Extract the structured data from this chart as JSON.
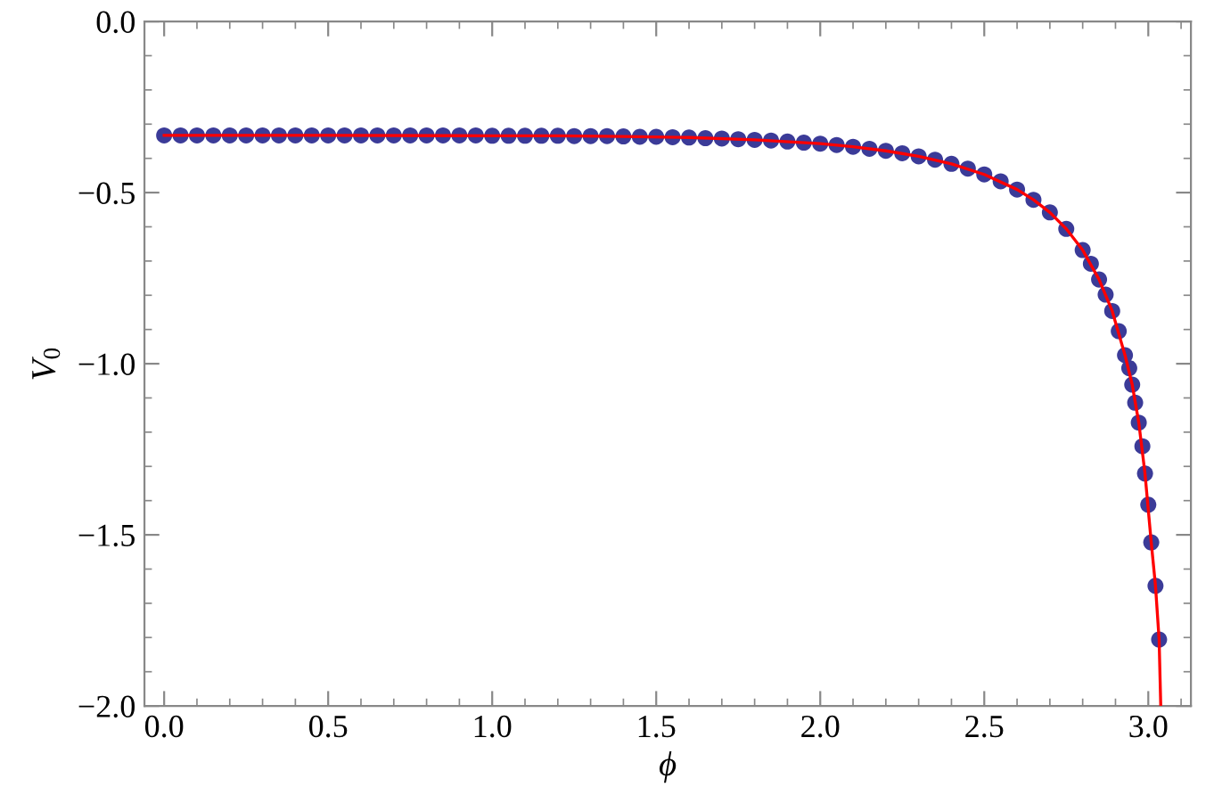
{
  "chart_data": {
    "type": "scatter",
    "xlabel": "ϕ",
    "ylabel": "V$_{0}$",
    "xlim": [
      -0.06,
      3.13
    ],
    "ylim": [
      -2.0,
      0.0
    ],
    "xticks": [
      {
        "value": 0,
        "label": "0.0"
      },
      0.5,
      {
        "value": 1,
        "label": "1.0"
      },
      1.5,
      {
        "value": 2,
        "label": "2.0"
      },
      2.5,
      {
        "value": 3,
        "label": "3.0"
      }
    ],
    "yticks": [
      {
        "value": -2,
        "label": "−2.0"
      },
      {
        "value": -1.5,
        "label": "−1.5"
      },
      {
        "value": -1,
        "label": "−1.0"
      },
      {
        "value": -0.5,
        "label": "−0.5"
      },
      {
        "value": 0,
        "label": "0.0"
      }
    ],
    "grid": false,
    "marker": "circle",
    "series": [
      {
        "color": "#3b3b98",
        "x": [
          0,
          0.05,
          0.1,
          0.15,
          0.2,
          0.25,
          0.3,
          0.35,
          0.4,
          0.45,
          0.5,
          0.55,
          0.6,
          0.65,
          0.7,
          0.75,
          0.8,
          0.85,
          0.9,
          0.95,
          1.0,
          1.05,
          1.1,
          1.15,
          1.2,
          1.25,
          1.3,
          1.35,
          1.4,
          1.45,
          1.5,
          1.55,
          1.6,
          1.65,
          1.7,
          1.75,
          1.8,
          1.85,
          1.9,
          1.95,
          2.0,
          2.05,
          2.1,
          2.15,
          2.2,
          2.25,
          2.3,
          2.35,
          2.4,
          2.45,
          2.5,
          2.55,
          2.6,
          2.65,
          2.7,
          2.75,
          2.8,
          2.825,
          2.85,
          2.87,
          2.89,
          2.91,
          2.929,
          2.942,
          2.951,
          2.96,
          2.971,
          2.982,
          2.99,
          3.0,
          3.009,
          3.022,
          3.033
        ],
        "values": [
          -0.333,
          -0.333,
          -0.333,
          -0.333,
          -0.333,
          -0.333,
          -0.333,
          -0.333,
          -0.333,
          -0.333,
          -0.333,
          -0.333,
          -0.333,
          -0.333,
          -0.333,
          -0.333,
          -0.333,
          -0.333,
          -0.333,
          -0.333,
          -0.334,
          -0.334,
          -0.334,
          -0.334,
          -0.334,
          -0.335,
          -0.335,
          -0.335,
          -0.336,
          -0.337,
          -0.337,
          -0.338,
          -0.339,
          -0.341,
          -0.342,
          -0.344,
          -0.346,
          -0.348,
          -0.351,
          -0.354,
          -0.357,
          -0.361,
          -0.366,
          -0.372,
          -0.378,
          -0.385,
          -0.394,
          -0.404,
          -0.416,
          -0.43,
          -0.447,
          -0.467,
          -0.491,
          -0.521,
          -0.558,
          -0.606,
          -0.668,
          -0.708,
          -0.754,
          -0.798,
          -0.846,
          -0.905,
          -0.975,
          -1.013,
          -1.061,
          -1.114,
          -1.172,
          -1.241,
          -1.321,
          -1.412,
          -1.522,
          -1.649,
          -1.806
        ]
      },
      {
        "type": "line",
        "color": "#ff0000",
        "line_style": "solid",
        "marker": "none",
        "x": [
          0,
          0.5,
          1.0,
          1.2,
          1.4,
          1.6,
          1.8,
          2.0,
          2.1,
          2.2,
          2.3,
          2.4,
          2.5,
          2.6,
          2.65,
          2.7,
          2.75,
          2.8,
          2.85,
          2.89,
          2.929,
          2.951,
          2.971,
          2.99,
          3.009,
          3.022,
          3.033,
          3.038
        ],
        "values": [
          -0.333,
          -0.333,
          -0.334,
          -0.334,
          -0.336,
          -0.339,
          -0.346,
          -0.357,
          -0.366,
          -0.378,
          -0.394,
          -0.416,
          -0.447,
          -0.491,
          -0.521,
          -0.558,
          -0.606,
          -0.668,
          -0.754,
          -0.846,
          -0.975,
          -1.061,
          -1.172,
          -1.321,
          -1.522,
          -1.649,
          -1.806,
          -2.0
        ]
      }
    ]
  }
}
